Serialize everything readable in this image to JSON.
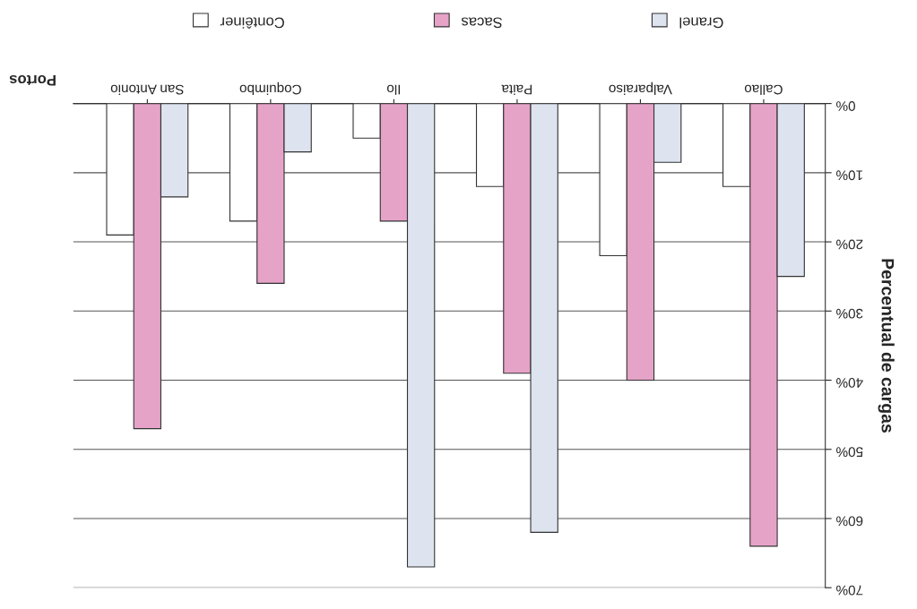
{
  "chart_data": {
    "type": "bar",
    "xlabel": "Portos",
    "ylabel": "Percentual de cargas",
    "categories": [
      "San Antonio",
      "Coquimbo",
      "Ilo",
      "Paita",
      "Valparaiso",
      "Callao"
    ],
    "series": [
      {
        "name": "Contêiner",
        "color": "#ffffff",
        "values": [
          19,
          17,
          5,
          12,
          22,
          12
        ]
      },
      {
        "name": "Sacas",
        "color": "#e6a3c8",
        "values": [
          47,
          26,
          17,
          39,
          40,
          64
        ]
      },
      {
        "name": "Granel",
        "color": "#dde3ef",
        "values": [
          13.5,
          7,
          67,
          62,
          8.5,
          25
        ]
      }
    ],
    "ylim": [
      70,
      0
    ],
    "yticks": [
      {
        "value": 0,
        "label": "0%"
      },
      {
        "value": 10,
        "label": "10%"
      },
      {
        "value": 20,
        "label": "20%"
      },
      {
        "value": 30,
        "label": "30%"
      },
      {
        "value": 40,
        "label": "40%"
      },
      {
        "value": 50,
        "label": "50%"
      },
      {
        "value": 60,
        "label": "60%"
      },
      {
        "value": 70,
        "label": "70%"
      }
    ],
    "grid": "y",
    "legend": "top"
  }
}
